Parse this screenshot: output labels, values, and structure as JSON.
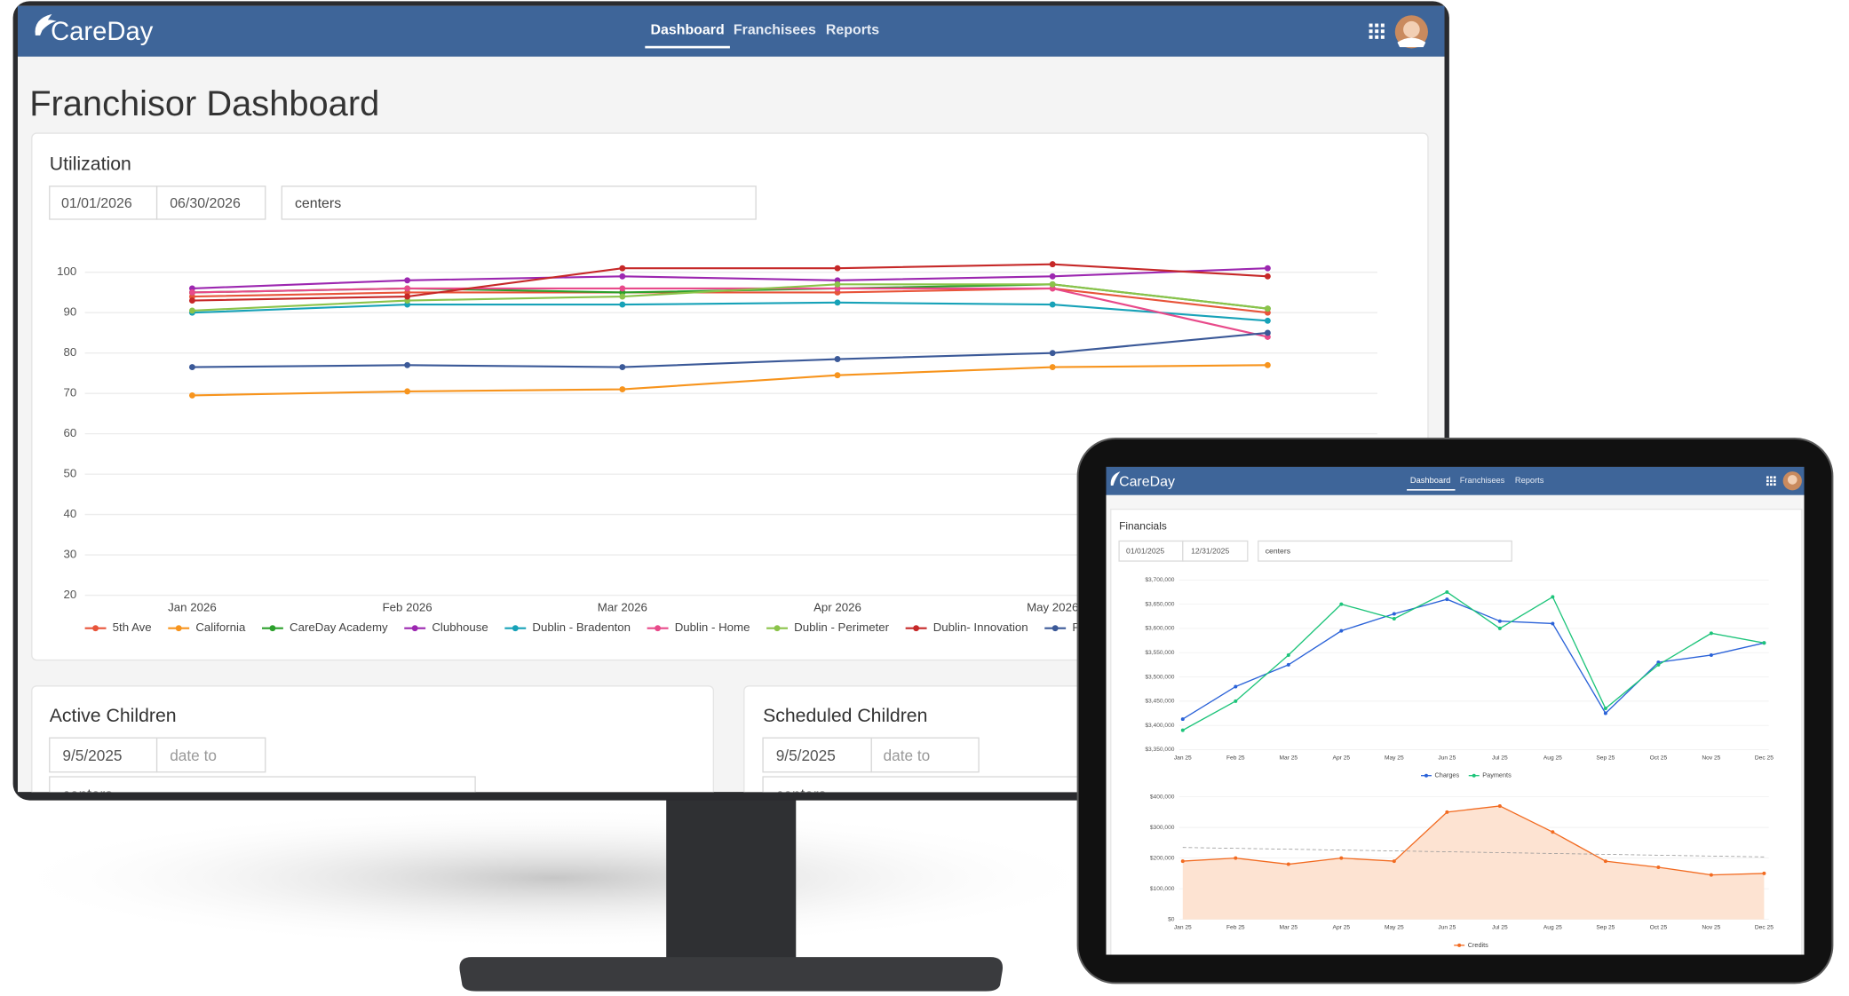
{
  "monitor": {
    "nav": {
      "logo": "CareDay",
      "links": [
        "Dashboard",
        "Franchisees",
        "Reports"
      ]
    },
    "title": "Franchisor Dashboard",
    "utilization": {
      "heading": "Utilization",
      "date_from": "01/01/2026",
      "date_to": "06/30/2026",
      "centers": "centers",
      "chart": {
        "type": "line",
        "categories": [
          "Jan 2026",
          "Feb 2026",
          "Mar 2026",
          "Apr 2026",
          "May 2026",
          null
        ],
        "ylim": [
          20,
          100
        ],
        "yticks": [
          20,
          30,
          40,
          50,
          60,
          70,
          80,
          90,
          100
        ],
        "grid": true,
        "series": [
          {
            "name": "5th Ave",
            "color": "#e8543a",
            "values": [
              94,
              95,
              95,
              95,
              96,
              90
            ]
          },
          {
            "name": "California",
            "color": "#f7941d",
            "values": [
              69.5,
              70.5,
              71,
              74.5,
              76.5,
              77
            ]
          },
          {
            "name": "CareDay Academy",
            "color": "#2ca02c",
            "values": [
              95,
              96,
              95,
              96,
              97,
              91
            ]
          },
          {
            "name": "Clubhouse",
            "color": "#9c27b0",
            "values": [
              96,
              98,
              99,
              98,
              99,
              101
            ]
          },
          {
            "name": "Dublin - Bradenton",
            "color": "#17a2b8",
            "values": [
              90,
              92,
              92,
              92.5,
              92,
              88
            ]
          },
          {
            "name": "Dublin - Home",
            "color": "#e84a8a",
            "values": [
              95,
              96,
              96,
              96,
              96,
              84
            ]
          },
          {
            "name": "Dublin - Perimeter",
            "color": "#8bc34a",
            "values": [
              90.5,
              93,
              94,
              97,
              97,
              91
            ]
          },
          {
            "name": "Dublin- Innovation",
            "color": "#c62828",
            "values": [
              93,
              94,
              101,
              101,
              102,
              99
            ]
          },
          {
            "name": "Fe",
            "color": "#3b5998",
            "values": [
              76.5,
              77,
              76.5,
              78.5,
              80,
              85
            ]
          }
        ]
      }
    },
    "active_children": {
      "heading": "Active Children",
      "date_from": "9/5/2025",
      "date_to": "date to",
      "centers": "centers"
    },
    "scheduled_children": {
      "heading": "Scheduled Children",
      "date_from": "9/5/2025",
      "date_to": "date to",
      "centers": "centers"
    }
  },
  "tablet": {
    "nav": {
      "logo": "CareDay",
      "links": [
        "Dashboard",
        "Franchisees",
        "Reports"
      ]
    },
    "financials": {
      "heading": "Financials",
      "date_from": "01/01/2025",
      "date_to": "12/31/2025",
      "centers": "centers",
      "charts": [
        {
          "type": "line",
          "categories": [
            "Jan 25",
            "Feb 25",
            "Mar 25",
            "Apr 25",
            "May 25",
            "Jun 25",
            "Jul 25",
            "Aug 25",
            "Sep 25",
            "Oct 25",
            "Nov 25",
            "Dec 25"
          ],
          "ylim": [
            3350000,
            3700000
          ],
          "yticks": [
            {
              "value": 3350000,
              "label": "$3,350,000"
            },
            {
              "value": 3400000,
              "label": "$3,400,000"
            },
            {
              "value": 3450000,
              "label": "$3,450,000"
            },
            {
              "value": 3500000,
              "label": "$3,500,000"
            },
            {
              "value": 3550000,
              "label": "$3,550,000"
            },
            {
              "value": 3600000,
              "label": "$3,600,000"
            },
            {
              "value": 3650000,
              "label": "$3,650,000"
            },
            {
              "value": 3700000,
              "label": "$3,700,000"
            }
          ],
          "grid": true,
          "series": [
            {
              "name": "Charges",
              "color": "#2a62d8",
              "values": [
                3413000,
                3480000,
                3525000,
                3595000,
                3630000,
                3660000,
                3615000,
                3610000,
                3425000,
                3530000,
                3545000,
                3570000
              ]
            },
            {
              "name": "Payments",
              "color": "#1dc47a",
              "values": [
                3390000,
                3450000,
                3545000,
                3650000,
                3620000,
                3675000,
                3600000,
                3665000,
                3435000,
                3525000,
                3590000,
                3570000
              ]
            }
          ]
        },
        {
          "type": "area",
          "categories": [
            "Jan 25",
            "Feb 25",
            "Mar 25",
            "Apr 25",
            "May 25",
            "Jun 25",
            "Jul 25",
            "Aug 25",
            "Sep 25",
            "Oct 25",
            "Nov 25",
            "Dec 25"
          ],
          "ylim": [
            0,
            400000
          ],
          "yticks": [
            {
              "value": 0,
              "label": "$0"
            },
            {
              "value": 100000,
              "label": "$100,000"
            },
            {
              "value": 200000,
              "label": "$200,000"
            },
            {
              "value": 300000,
              "label": "$300,000"
            },
            {
              "value": 400000,
              "label": "$400,000"
            }
          ],
          "grid": true,
          "series": [
            {
              "name": "Credits",
              "color": "#f26b21",
              "fill": "#fde3d2",
              "values": [
                190000,
                200000,
                180000,
                200000,
                190000,
                350000,
                370000,
                285000,
                190000,
                170000,
                145000,
                150000
              ]
            }
          ]
        }
      ]
    }
  }
}
